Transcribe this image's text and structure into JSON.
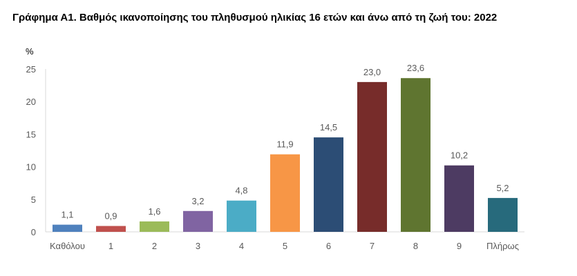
{
  "chart_data": {
    "type": "bar",
    "title": "Γράφημα Α1. Βαθμός ικανοποίησης του πληθυσμού ηλικίας 16 ετών και άνω από τη ζωή του: 2022",
    "ylabel": "%",
    "xlabel": "",
    "categories": [
      "Καθόλου",
      "1",
      "2",
      "3",
      "4",
      "5",
      "6",
      "7",
      "8",
      "9",
      "Πλήρως"
    ],
    "values": [
      1.1,
      0.9,
      1.6,
      3.2,
      4.8,
      11.9,
      14.5,
      23.0,
      23.6,
      10.2,
      5.2
    ],
    "data_labels": [
      "1,1",
      "0,9",
      "1,6",
      "3,2",
      "4,8",
      "11,9",
      "14,5",
      "23,0",
      "23,6",
      "10,2",
      "5,2"
    ],
    "colors": [
      "#4F81BD",
      "#C0504D",
      "#9BBB59",
      "#8064A2",
      "#4BACC6",
      "#F79646",
      "#2C4D75",
      "#772C2A",
      "#5F7530",
      "#4D3B62",
      "#276A7C"
    ],
    "ylim": [
      0,
      25
    ],
    "yticks": [
      "0",
      "5",
      "10",
      "15",
      "20",
      "25"
    ],
    "grid": false,
    "legend": "none"
  }
}
